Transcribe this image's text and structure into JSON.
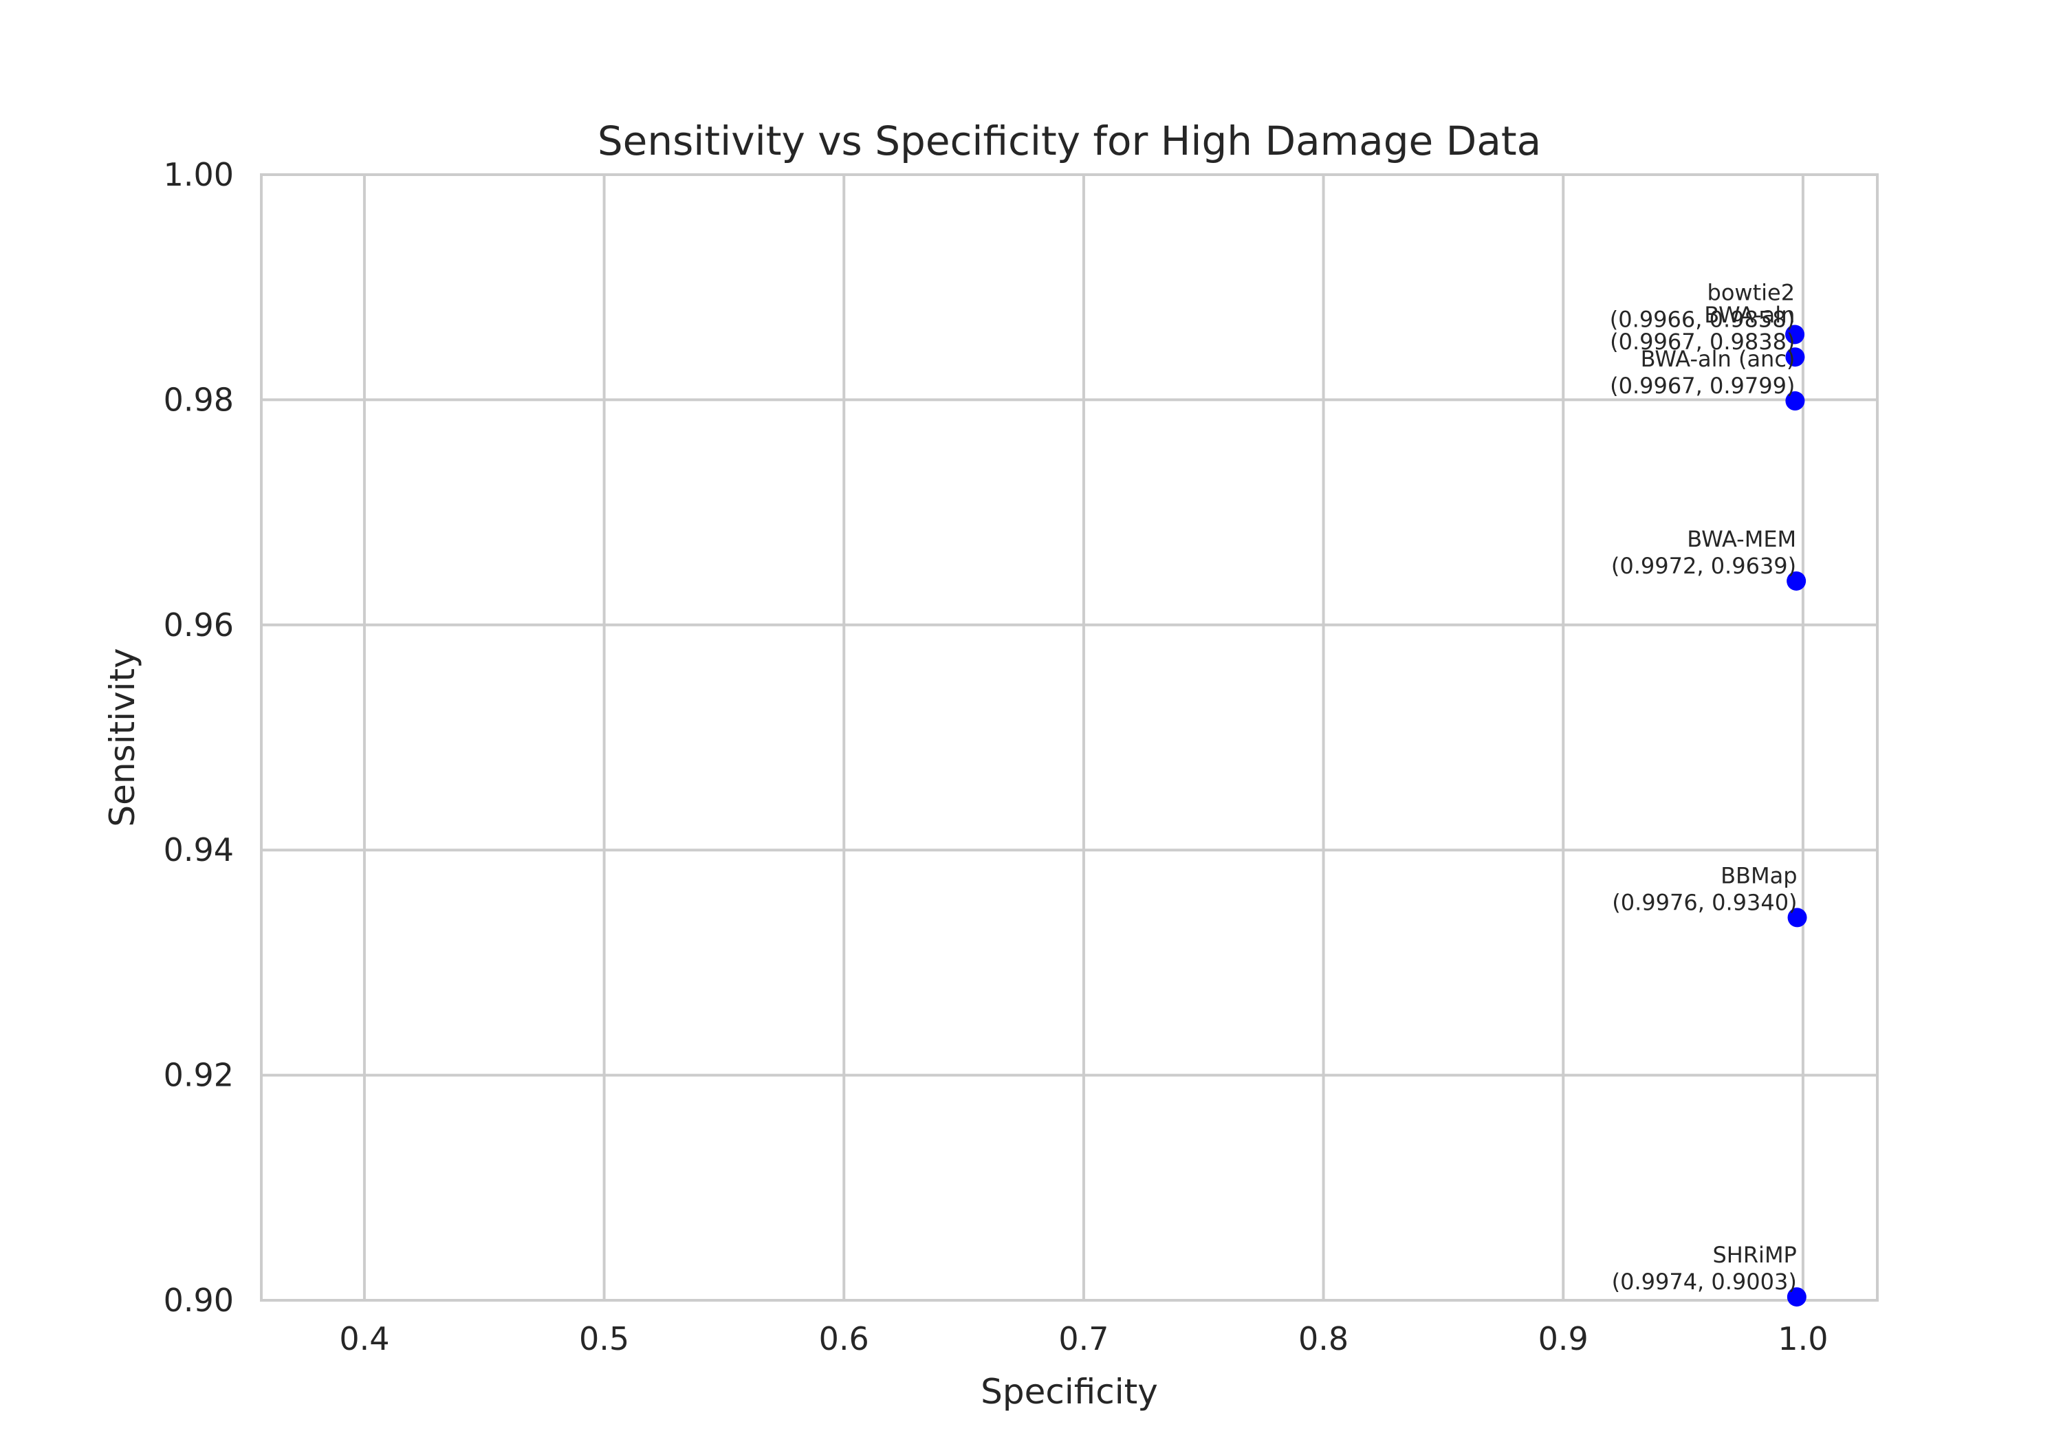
{
  "chart_data": {
    "type": "scatter",
    "title": "Sensitivity vs Specificity for High Damage Data",
    "xlabel": "Specificity",
    "ylabel": "Sensitivity",
    "xlim": [
      0.357,
      1.031
    ],
    "ylim": [
      0.9,
      1.0
    ],
    "xticks": [
      {
        "value": 0.4,
        "label": "0.4"
      },
      {
        "value": 0.5,
        "label": "0.5"
      },
      {
        "value": 0.6,
        "label": "0.6"
      },
      {
        "value": 0.7,
        "label": "0.7"
      },
      {
        "value": 0.8,
        "label": "0.8"
      },
      {
        "value": 0.9,
        "label": "0.9"
      },
      {
        "value": 1.0,
        "label": "1.0"
      }
    ],
    "yticks": [
      {
        "value": 0.9,
        "label": "0.90"
      },
      {
        "value": 0.92,
        "label": "0.92"
      },
      {
        "value": 0.94,
        "label": "0.94"
      },
      {
        "value": 0.96,
        "label": "0.96"
      },
      {
        "value": 0.98,
        "label": "0.98"
      },
      {
        "value": 1.0,
        "label": "1.00"
      }
    ],
    "grid": true,
    "marker_color": "#0000ff",
    "grid_color": "#cccccc",
    "points": [
      {
        "name": "bowtie2",
        "coords": "(0.9966, 0.9858)",
        "x": 0.9966,
        "y": 0.9858
      },
      {
        "name": "BWA-aln",
        "coords": "(0.9967, 0.9838)",
        "x": 0.9967,
        "y": 0.9838
      },
      {
        "name": "BWA-aln (anc)",
        "coords": "(0.9967, 0.9799)",
        "x": 0.9967,
        "y": 0.9799
      },
      {
        "name": "BWA-MEM",
        "coords": "(0.9972, 0.9639)",
        "x": 0.9972,
        "y": 0.9639
      },
      {
        "name": "BBMap",
        "coords": "(0.9976, 0.9340)",
        "x": 0.9976,
        "y": 0.934
      },
      {
        "name": "SHRiMP",
        "coords": "(0.9974, 0.9003)",
        "x": 0.9974,
        "y": 0.9003
      }
    ]
  }
}
